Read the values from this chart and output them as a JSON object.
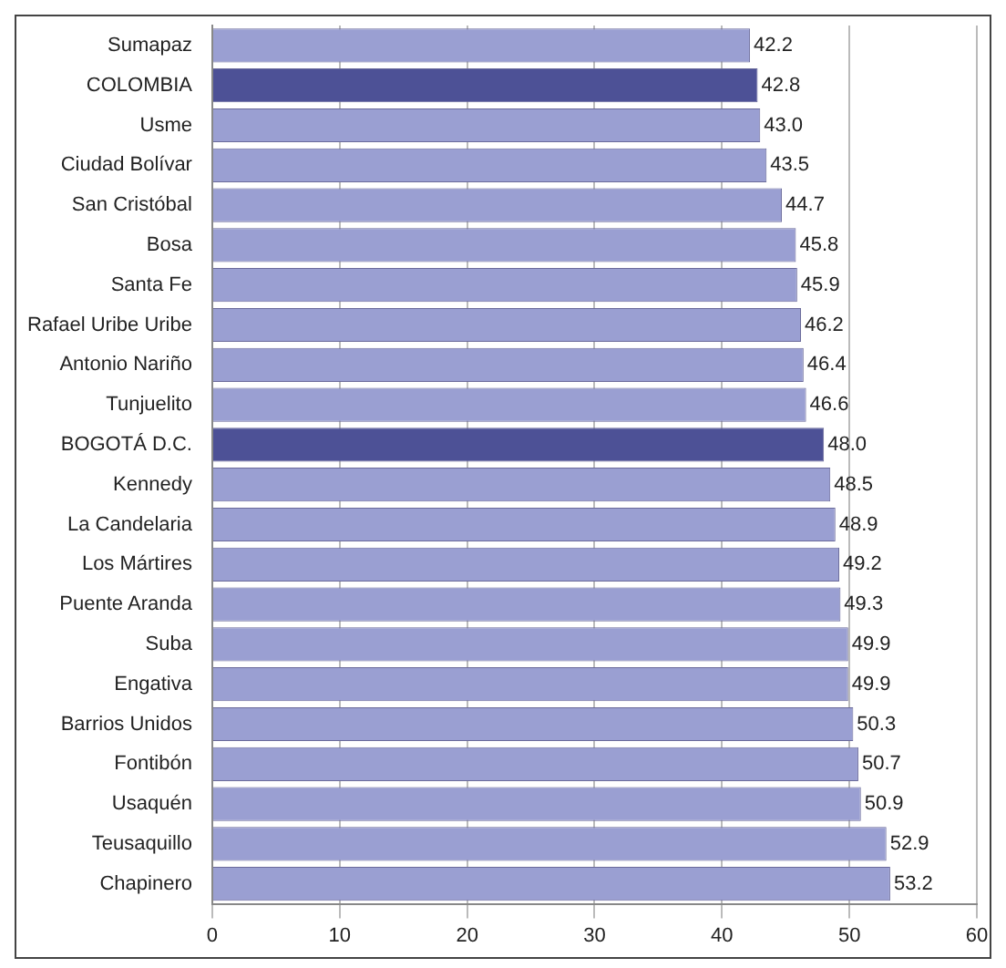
{
  "chart_data": {
    "type": "bar",
    "orientation": "horizontal",
    "categories": [
      "Sumapaz",
      "COLOMBIA",
      "Usme",
      "Ciudad Bolívar",
      "San Cristóbal",
      "Bosa",
      "Santa Fe",
      "Rafael Uribe Uribe",
      "Antonio Nariño",
      "Tunjuelito",
      "BOGOTÁ D.C.",
      "Kennedy",
      "La Candelaria",
      "Los Mártires",
      "Puente Aranda",
      "Suba",
      "Engativa",
      "Barrios Unidos",
      "Fontibón",
      "Usaquén",
      "Teusaquillo",
      "Chapinero"
    ],
    "values": [
      42.2,
      42.8,
      43.0,
      43.5,
      44.7,
      45.8,
      45.9,
      46.2,
      46.4,
      46.6,
      48.0,
      48.5,
      48.9,
      49.2,
      49.3,
      49.9,
      49.9,
      50.3,
      50.7,
      50.9,
      52.9,
      53.2
    ],
    "colors": [
      "#9a9fd2",
      "#4d5196",
      "#9a9fd2",
      "#9a9fd2",
      "#9a9fd2",
      "#9a9fd2",
      "#9a9fd2",
      "#9a9fd2",
      "#9a9fd2",
      "#9a9fd2",
      "#4d5196",
      "#9a9fd2",
      "#9a9fd2",
      "#9a9fd2",
      "#9a9fd2",
      "#9a9fd2",
      "#9a9fd2",
      "#9a9fd2",
      "#9a9fd2",
      "#9a9fd2",
      "#9a9fd2",
      "#9a9fd2"
    ],
    "value_labels": [
      "42.2",
      "42.8",
      "43.0",
      "43.5",
      "44.7",
      "45.8",
      "45.9",
      "46.2",
      "46.4",
      "46.6",
      "48.0",
      "48.5",
      "48.9",
      "49.2",
      "49.3",
      "49.9",
      "49.9",
      "50.3",
      "50.7",
      "50.9",
      "52.9",
      "53.2"
    ],
    "xlim": [
      0,
      60
    ],
    "xticks": [
      0,
      10,
      20,
      30,
      40,
      50,
      60
    ],
    "grid": "x"
  }
}
